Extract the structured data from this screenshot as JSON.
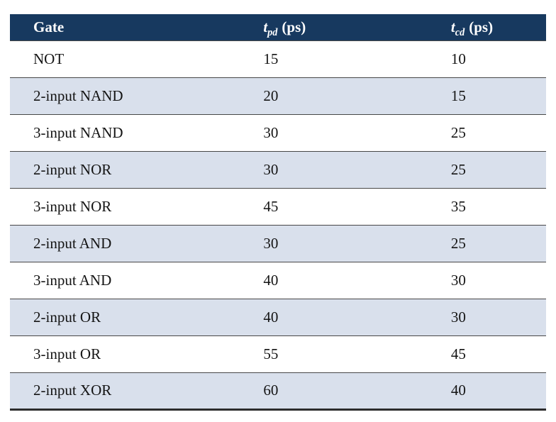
{
  "chart_data": {
    "type": "table",
    "columns": [
      {
        "label": "Gate"
      },
      {
        "symbol": "t",
        "subscript": "pd",
        "unit": "(ps)"
      },
      {
        "symbol": "t",
        "subscript": "cd",
        "unit": "(ps)"
      }
    ],
    "rows": [
      {
        "gate": "NOT",
        "tpd": 15,
        "tcd": 10
      },
      {
        "gate": "2-input NAND",
        "tpd": 20,
        "tcd": 15
      },
      {
        "gate": "3-input NAND",
        "tpd": 30,
        "tcd": 25
      },
      {
        "gate": "2-input NOR",
        "tpd": 30,
        "tcd": 25
      },
      {
        "gate": "3-input NOR",
        "tpd": 45,
        "tcd": 35
      },
      {
        "gate": "2-input AND",
        "tpd": 30,
        "tcd": 25
      },
      {
        "gate": "3-input AND",
        "tpd": 40,
        "tcd": 30
      },
      {
        "gate": "2-input OR",
        "tpd": 40,
        "tcd": 30
      },
      {
        "gate": "3-input OR",
        "tpd": 55,
        "tcd": 45
      },
      {
        "gate": "2-input XOR",
        "tpd": 60,
        "tcd": 40
      }
    ]
  },
  "style": {
    "header_bg": "#17395f",
    "header_text": "#ffffff",
    "row_alt_bg": "#d9e0ec",
    "row_bg": "#ffffff",
    "body_text": "#141414",
    "rule_color": "#474747",
    "bottom_rule_color": "#2d2d2d"
  }
}
